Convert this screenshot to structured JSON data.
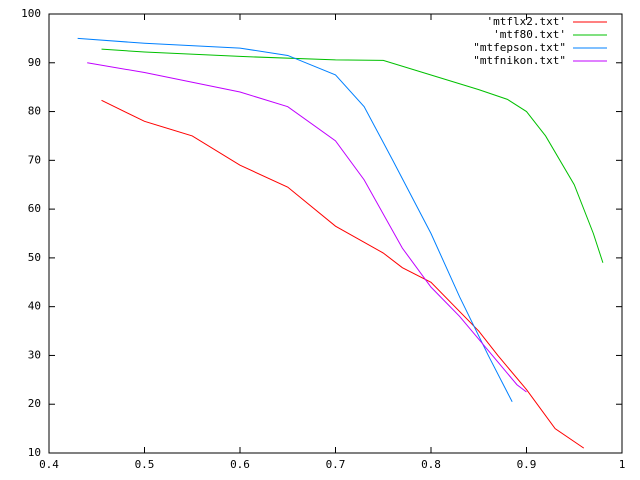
{
  "chart_data": {
    "type": "line",
    "xlim": [
      0.4,
      1
    ],
    "ylim": [
      10,
      100
    ],
    "xticks": [
      0.4,
      0.5,
      0.6,
      0.7,
      0.8,
      0.9,
      1
    ],
    "yticks": [
      10,
      20,
      30,
      40,
      50,
      60,
      70,
      80,
      90,
      100
    ],
    "legend": "top-right",
    "series": [
      {
        "name": "'mtflx2.txt'",
        "color": "#ff0000",
        "x": [
          0.455,
          0.5,
          0.55,
          0.6,
          0.65,
          0.7,
          0.75,
          0.77,
          0.8,
          0.85,
          0.87,
          0.9,
          0.93,
          0.96
        ],
        "values": [
          82.3,
          78,
          75,
          69,
          64.5,
          56.5,
          51,
          48,
          45,
          35,
          30,
          23,
          15,
          11
        ]
      },
      {
        "name": "'mtf80.txt'",
        "color": "#00c000",
        "x": [
          0.455,
          0.5,
          0.6,
          0.7,
          0.75,
          0.8,
          0.85,
          0.88,
          0.9,
          0.92,
          0.95,
          0.97,
          0.98
        ],
        "values": [
          92.8,
          92.2,
          91.3,
          90.6,
          90.5,
          87.5,
          84.5,
          82.5,
          80,
          75,
          65,
          55,
          49
        ]
      },
      {
        "name": "\"mtfepson.txt\"",
        "color": "#0080ff",
        "x": [
          0.43,
          0.5,
          0.6,
          0.65,
          0.7,
          0.73,
          0.76,
          0.8,
          0.83,
          0.86,
          0.885
        ],
        "values": [
          95,
          94,
          93,
          91.5,
          87.5,
          81,
          70,
          55,
          42,
          30,
          20.5
        ]
      },
      {
        "name": "\"mtfnikon.txt\"",
        "color": "#c000ff",
        "x": [
          0.44,
          0.5,
          0.6,
          0.65,
          0.7,
          0.73,
          0.77,
          0.8,
          0.83,
          0.86,
          0.89,
          0.9
        ],
        "values": [
          90,
          88,
          84,
          81,
          74,
          66,
          52,
          44,
          38,
          31,
          24,
          22.5
        ]
      }
    ]
  }
}
